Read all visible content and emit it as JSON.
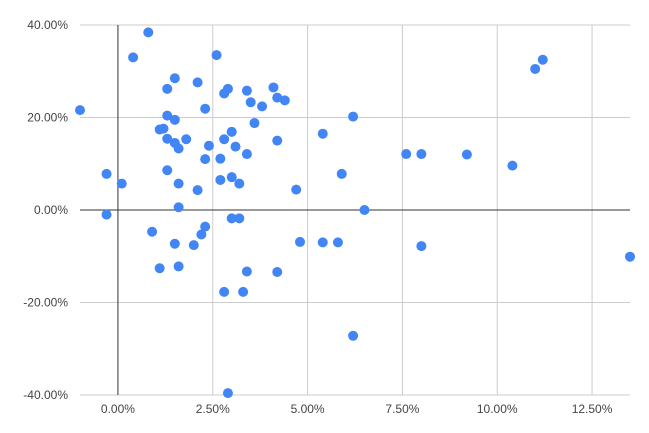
{
  "chart_data": {
    "type": "scatter",
    "title": "",
    "xlabel": "",
    "ylabel": "",
    "xlim": [
      -0.01,
      0.135
    ],
    "ylim": [
      -0.4,
      0.4
    ],
    "x_ticks": [
      0,
      0.025,
      0.05,
      0.075,
      0.1,
      0.125
    ],
    "x_tick_labels": [
      "0.00%",
      "2.50%",
      "5.00%",
      "7.50%",
      "10.00%",
      "12.50%"
    ],
    "y_ticks": [
      0.4,
      0.2,
      0,
      -0.2,
      -0.4
    ],
    "y_tick_labels": [
      "40.00%",
      "20.00%",
      "0.00%",
      "-20.00%",
      "-40.00%"
    ],
    "grid": true,
    "legend": "none",
    "point_color": "#4285f4",
    "series": [
      {
        "points": [
          [
            -0.01,
            0.216
          ],
          [
            -0.003,
            0.078
          ],
          [
            -0.003,
            -0.01
          ],
          [
            0.001,
            0.057
          ],
          [
            0.004,
            0.33
          ],
          [
            0.008,
            0.384
          ],
          [
            0.009,
            -0.047
          ],
          [
            0.011,
            0.174
          ],
          [
            0.011,
            -0.126
          ],
          [
            0.012,
            0.176
          ],
          [
            0.013,
            0.262
          ],
          [
            0.013,
            0.204
          ],
          [
            0.013,
            0.154
          ],
          [
            0.013,
            0.086
          ],
          [
            0.015,
            0.285
          ],
          [
            0.015,
            0.195
          ],
          [
            0.015,
            0.145
          ],
          [
            0.015,
            -0.073
          ],
          [
            0.016,
            0.133
          ],
          [
            0.016,
            0.057
          ],
          [
            0.016,
            0.006
          ],
          [
            0.016,
            -0.122
          ],
          [
            0.018,
            0.153
          ],
          [
            0.02,
            -0.076
          ],
          [
            0.021,
            0.276
          ],
          [
            0.021,
            0.043
          ],
          [
            0.022,
            -0.053
          ],
          [
            0.023,
            0.219
          ],
          [
            0.023,
            0.11
          ],
          [
            0.023,
            -0.036
          ],
          [
            0.024,
            0.139
          ],
          [
            0.026,
            0.335
          ],
          [
            0.027,
            0.111
          ],
          [
            0.027,
            0.065
          ],
          [
            0.028,
            0.252
          ],
          [
            0.028,
            0.153
          ],
          [
            0.028,
            -0.177
          ],
          [
            0.029,
            0.262
          ],
          [
            0.029,
            -0.396
          ],
          [
            0.03,
            0.169
          ],
          [
            0.03,
            0.071
          ],
          [
            0.03,
            -0.018
          ],
          [
            0.031,
            0.137
          ],
          [
            0.032,
            0.057
          ],
          [
            0.032,
            -0.018
          ],
          [
            0.033,
            -0.177
          ],
          [
            0.034,
            0.258
          ],
          [
            0.034,
            0.121
          ],
          [
            0.034,
            -0.133
          ],
          [
            0.035,
            0.233
          ],
          [
            0.036,
            0.188
          ],
          [
            0.038,
            0.224
          ],
          [
            0.041,
            0.265
          ],
          [
            0.042,
            0.243
          ],
          [
            0.042,
            0.15
          ],
          [
            0.042,
            -0.134
          ],
          [
            0.044,
            0.237
          ],
          [
            0.047,
            0.044
          ],
          [
            0.048,
            -0.069
          ],
          [
            0.054,
            0.165
          ],
          [
            0.054,
            -0.07
          ],
          [
            0.058,
            -0.07
          ],
          [
            0.059,
            0.078
          ],
          [
            0.062,
            0.202
          ],
          [
            0.062,
            -0.272
          ],
          [
            0.065,
            0.0
          ],
          [
            0.076,
            0.121
          ],
          [
            0.08,
            0.121
          ],
          [
            0.08,
            -0.078
          ],
          [
            0.092,
            0.12
          ],
          [
            0.104,
            0.096
          ],
          [
            0.11,
            0.305
          ],
          [
            0.112,
            0.325
          ],
          [
            0.135,
            -0.101
          ]
        ]
      }
    ]
  }
}
